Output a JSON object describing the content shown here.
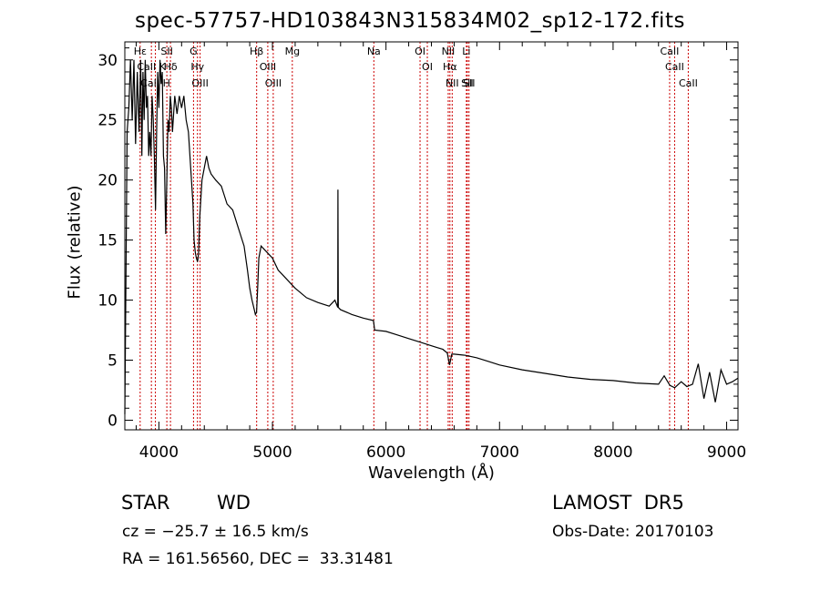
{
  "title": "spec-57757-HD103843N315834M02_sp12-172.fits",
  "info": {
    "object_class": "STAR",
    "object_subclass": "WD",
    "survey": "LAMOST  DR5",
    "cz": "cz = −25.7 ± 16.5 km/s",
    "obs_date": "Obs-Date: 20170103",
    "radec": "RA = 161.56560, DEC =  33.31481"
  },
  "chart_data": {
    "type": "line",
    "xlabel": "Wavelength (Å)",
    "ylabel": "Flux (relative)",
    "xlim": [
      3700,
      9100
    ],
    "ylim": [
      -0.8,
      31.5
    ],
    "xticks": [
      4000,
      5000,
      6000,
      7000,
      8000,
      9000
    ],
    "yticks": [
      0,
      5,
      10,
      15,
      20,
      25,
      30
    ],
    "grid": false,
    "line_color": "#000000",
    "marker_color": "#cc0000",
    "series": [
      {
        "x": [
          3700,
          3710,
          3720,
          3735,
          3750,
          3765,
          3780,
          3795,
          3810,
          3825,
          3840,
          3850,
          3860,
          3870,
          3880,
          3890,
          3900,
          3910,
          3920,
          3930,
          3940,
          3950,
          3960,
          3970,
          3980,
          3990,
          4000,
          4010,
          4020,
          4030,
          4040,
          4050,
          4060,
          4070,
          4080,
          4090,
          4100,
          4110,
          4120,
          4140,
          4160,
          4180,
          4200,
          4220,
          4240,
          4260,
          4280,
          4300,
          4310,
          4320,
          4330,
          4340,
          4345,
          4350,
          4360,
          4380,
          4400,
          4420,
          4440,
          4460,
          4500,
          4550,
          4600,
          4650,
          4700,
          4750,
          4780,
          4800,
          4820,
          4840,
          4850,
          4860,
          4870,
          4880,
          4900,
          4920,
          4950,
          5000,
          5050,
          5100,
          5200,
          5300,
          5400,
          5500,
          5550,
          5575,
          5577,
          5580,
          5600,
          5700,
          5800,
          5890,
          5900,
          6000,
          6100,
          6200,
          6300,
          6400,
          6500,
          6540,
          6560,
          6580,
          6600,
          6700,
          6800,
          6900,
          7000,
          7200,
          7400,
          7600,
          7800,
          8000,
          8200,
          8400,
          8450,
          8500,
          8542,
          8600,
          8650,
          8700,
          8750,
          8800,
          8850,
          8900,
          8950,
          9000,
          9050,
          9100
        ],
        "y": [
          0.5,
          11.5,
          24,
          26,
          30,
          25,
          30,
          23,
          29,
          24,
          30,
          22,
          29,
          25,
          30,
          26,
          27,
          22,
          24,
          22,
          27,
          25,
          22,
          17.5,
          24,
          29,
          26,
          30,
          28,
          29,
          22,
          21,
          15.5,
          20,
          25,
          24,
          27,
          26,
          24,
          27,
          25.5,
          27,
          26,
          27,
          25,
          24,
          21,
          18,
          15,
          14,
          13.5,
          13.2,
          13.5,
          14,
          17,
          20,
          21,
          22,
          21,
          20.5,
          20,
          19.5,
          18,
          17.5,
          16,
          14.5,
          12.5,
          11,
          10,
          9.2,
          8.8,
          9,
          11,
          13.5,
          14.5,
          14.3,
          14,
          13.5,
          12.5,
          12,
          11,
          10.2,
          9.8,
          9.5,
          10,
          9.4,
          19.2,
          9.4,
          9.2,
          8.8,
          8.5,
          8.3,
          7.5,
          7.4,
          7.1,
          6.8,
          6.5,
          6.2,
          5.9,
          5.6,
          4.6,
          5.5,
          5.5,
          5.4,
          5.2,
          4.9,
          4.6,
          4.2,
          3.9,
          3.6,
          3.4,
          3.3,
          3.1,
          3,
          3.7,
          2.9,
          2.7,
          3.2,
          2.8,
          3,
          4.7,
          1.8,
          4,
          1.5,
          4.2,
          3,
          3.2,
          3.5
        ]
      }
    ],
    "lines": [
      {
        "label": "Hε",
        "x": 3835
      },
      {
        "label": "CaII K",
        "x": 3934
      },
      {
        "label": "CaII H",
        "x": 3969
      },
      {
        "label": "Hδ",
        "x": 4102
      },
      {
        "label": "SII",
        "x": 4070
      },
      {
        "label": "OIII",
        "x": 4363
      },
      {
        "label": "Hγ",
        "x": 4340
      },
      {
        "label": "G",
        "x": 4305
      },
      {
        "label": "Hβ",
        "x": 4861
      },
      {
        "label": "OIII",
        "x": 4959
      },
      {
        "label": "OIII",
        "x": 5007
      },
      {
        "label": "Mg",
        "x": 5175
      },
      {
        "label": "Na",
        "x": 5893
      },
      {
        "label": "OI",
        "x": 6300
      },
      {
        "label": "OI",
        "x": 6364
      },
      {
        "label": "Hα",
        "x": 6563
      },
      {
        "label": "NII",
        "x": 6548
      },
      {
        "label": "NII",
        "x": 6583
      },
      {
        "label": "SII",
        "x": 6716
      },
      {
        "label": "Li",
        "x": 6708
      },
      {
        "label": "SII",
        "x": 6731
      },
      {
        "label": "CaII",
        "x": 8498
      },
      {
        "label": "CaII",
        "x": 8542
      },
      {
        "label": "CaII",
        "x": 8662
      }
    ]
  }
}
